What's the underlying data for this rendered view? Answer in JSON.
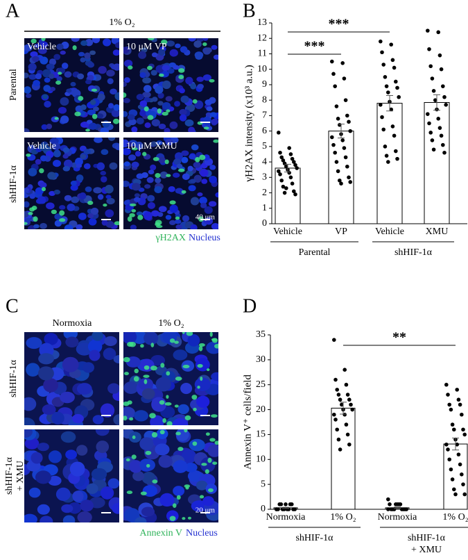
{
  "figure": {
    "panels": [
      {
        "letter": "A",
        "top_label": "1% O₂",
        "image_labels": [
          "Vehicle",
          "10 μM VP",
          "Vehicle",
          "10 μM XMU"
        ],
        "row_labels": [
          [
            "Parental"
          ],
          [
            "shHIF-1α"
          ]
        ],
        "legend": [
          "γH2AX",
          "Nucleus"
        ],
        "scale": "40 μm"
      },
      {
        "letter": "B"
      },
      {
        "letter": "C",
        "column_labels": [
          "Normoxia",
          "1% O₂"
        ],
        "row_labels": [
          [
            "shHIF-1α"
          ],
          [
            "shHIF-1α",
            "+ XMU"
          ]
        ],
        "legend": [
          "Annexin V",
          "Nucleus"
        ],
        "scale": "20 μm"
      },
      {
        "letter": "D"
      }
    ]
  },
  "chart_data": [
    {
      "type": "bar",
      "ylabel": "γH2AX intensity (x10³ a.u.)",
      "categories": [
        "Vehicle",
        "VP",
        "Vehicle",
        "XMU"
      ],
      "values": [
        3.6,
        6.0,
        7.8,
        7.85
      ],
      "errors": [
        0.25,
        0.45,
        0.5,
        0.5
      ],
      "points": [
        [
          5.9,
          4.9,
          4.6,
          4.5,
          4.3,
          4.2,
          4.1,
          4.0,
          3.9,
          3.8,
          3.7,
          3.6,
          3.5,
          3.4,
          3.3,
          3.2,
          3.0,
          2.8,
          2.6,
          2.4,
          2.1,
          2.0,
          1.9,
          2.3
        ],
        [
          10.5,
          10.4,
          9.7,
          9.4,
          8.9,
          8.0,
          7.6,
          7.0,
          6.8,
          6.6,
          6.4,
          6.0,
          5.8,
          5.6,
          5.4,
          5.1,
          4.9,
          4.6,
          4.3,
          4.0,
          3.7,
          3.4,
          3.0,
          2.8,
          2.7,
          2.6
        ],
        [
          11.8,
          11.6,
          11.1,
          10.6,
          10.3,
          10.1,
          9.5,
          9.2,
          8.9,
          8.8,
          8.5,
          8.2,
          7.9,
          7.7,
          7.4,
          6.9,
          6.3,
          6.1,
          5.7,
          5.0,
          4.7,
          4.4,
          4.2,
          4.0
        ],
        [
          12.5,
          12.4,
          11.3,
          10.9,
          10.2,
          10.0,
          9.4,
          8.9,
          8.6,
          8.2,
          8.0,
          7.7,
          7.4,
          7.1,
          6.8,
          6.5,
          6.2,
          5.9,
          5.7,
          5.4,
          5.1,
          4.8,
          4.6
        ]
      ],
      "group_labels": [
        [
          "Parental"
        ],
        [
          "shHIF-1α"
        ]
      ],
      "annotations": [
        "***",
        "***"
      ],
      "color": "#ffffff",
      "ylim": [
        0,
        13
      ],
      "yticks": [
        0,
        1,
        2,
        3,
        4,
        5,
        6,
        7,
        8,
        9,
        10,
        11,
        12,
        13
      ]
    },
    {
      "type": "bar",
      "ylabel": "Annexin V⁺ cells/field",
      "categories": [
        "Normoxia",
        "1% O₂",
        "Normoxia",
        "1% O₂"
      ],
      "values": [
        0.3,
        20.3,
        0.3,
        13.1
      ],
      "errors": [
        0.1,
        1.2,
        0.15,
        1.2
      ],
      "points": [
        [
          0,
          0,
          0,
          0,
          1,
          1,
          1,
          1,
          0,
          0,
          0,
          0,
          1,
          0
        ],
        [
          34,
          28,
          26,
          25,
          24,
          23,
          23,
          22,
          22,
          21,
          21,
          20,
          20,
          19,
          19,
          18,
          17,
          16,
          15,
          14,
          13,
          12
        ],
        [
          2,
          1,
          1,
          1,
          0,
          0,
          0,
          0,
          0,
          0,
          1,
          0,
          1,
          0
        ],
        [
          25,
          24,
          23,
          22,
          21,
          21,
          20,
          19,
          17,
          16,
          16,
          15,
          14,
          13,
          13,
          12,
          11,
          10,
          9,
          8,
          7,
          6,
          5,
          4,
          3,
          3
        ]
      ],
      "group_labels": [
        [
          "shHIF-1α"
        ],
        [
          "shHIF-1α",
          "+ XMU"
        ]
      ],
      "annotations": [
        "**"
      ],
      "color": "#ffffff",
      "ylim": [
        0,
        35
      ],
      "yticks": [
        0,
        5,
        10,
        15,
        20,
        25,
        30,
        35
      ]
    }
  ]
}
